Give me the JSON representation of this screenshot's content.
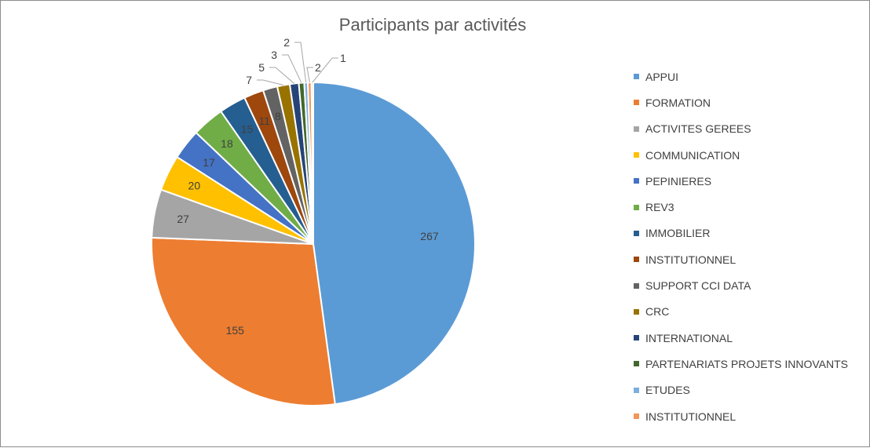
{
  "chart_data": {
    "type": "pie",
    "title": "Participants par activités",
    "legend_position": "right",
    "slices": [
      {
        "label": "APPUI",
        "value": 267,
        "color": "#5B9BD5"
      },
      {
        "label": "FORMATION",
        "value": 155,
        "color": "#ED7D31"
      },
      {
        "label": "ACTIVITES GEREES",
        "value": 27,
        "color": "#A5A5A5"
      },
      {
        "label": "COMMUNICATION",
        "value": 20,
        "color": "#FFC000"
      },
      {
        "label": "PEPINIERES",
        "value": 17,
        "color": "#4472C4"
      },
      {
        "label": "REV3",
        "value": 18,
        "color": "#70AD47"
      },
      {
        "label": "IMMOBILIER",
        "value": 15,
        "color": "#255E91"
      },
      {
        "label": "INSTITUTIONNEL",
        "value": 11,
        "color": "#9E480E"
      },
      {
        "label": "SUPPORT CCI DATA",
        "value": 8,
        "color": "#636363"
      },
      {
        "label": "CRC",
        "value": 7,
        "color": "#997300"
      },
      {
        "label": "INTERNATIONAL",
        "value": 5,
        "color": "#264478"
      },
      {
        "label": "PARTENARIATS PROJETS INNOVANTS",
        "value": 3,
        "color": "#43682B"
      },
      {
        "label": "ETUDES",
        "value": 2,
        "color": "#7CAFDD"
      },
      {
        "label": "INSTITUTIONNEL",
        "value": 2,
        "color": "#F1975A"
      },
      {
        "label": "",
        "value": 1,
        "color": "#BCBCBC"
      }
    ]
  }
}
